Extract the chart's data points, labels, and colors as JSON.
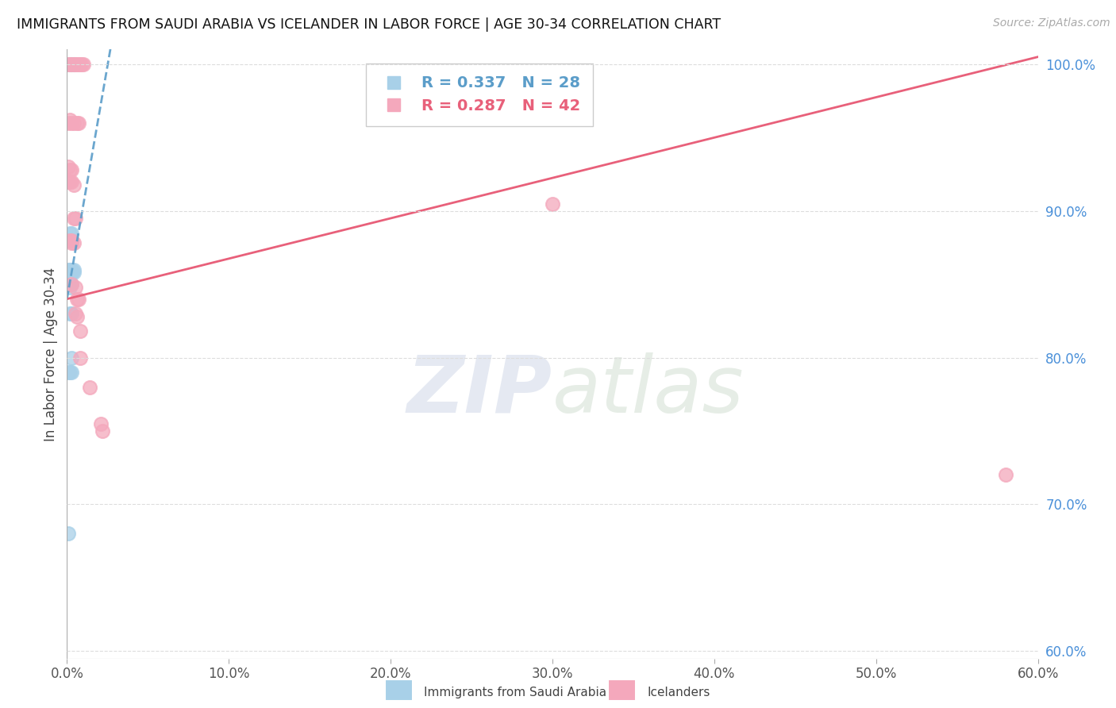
{
  "title": "IMMIGRANTS FROM SAUDI ARABIA VS ICELANDER IN LABOR FORCE | AGE 30-34 CORRELATION CHART",
  "source": "Source: ZipAtlas.com",
  "ylabel": "In Labor Force | Age 30-34",
  "xmin": 0.0,
  "xmax": 0.6,
  "ymin": 0.595,
  "ymax": 1.01,
  "yticks": [
    0.6,
    0.7,
    0.8,
    0.9,
    1.0
  ],
  "ytick_labels": [
    "60.0%",
    "70.0%",
    "80.0%",
    "90.0%",
    "100.0%"
  ],
  "xticks": [
    0.0,
    0.1,
    0.2,
    0.3,
    0.4,
    0.5,
    0.6
  ],
  "xtick_labels": [
    "0.0%",
    "10.0%",
    "20.0%",
    "30.0%",
    "40.0%",
    "50.0%",
    "60.0%"
  ],
  "blue_color": "#A8D0E8",
  "pink_color": "#F4A8BC",
  "blue_line_color": "#5B9DC9",
  "pink_line_color": "#E8607A",
  "legend_blue_label": "Immigrants from Saudi Arabia",
  "legend_pink_label": "Icelanders",
  "R_blue": 0.337,
  "N_blue": 28,
  "R_pink": 0.287,
  "N_pink": 42,
  "blue_x": [
    0.002,
    0.003,
    0.004,
    0.001,
    0.002,
    0.002,
    0.003,
    0.003,
    0.001,
    0.002,
    0.003,
    0.003,
    0.003,
    0.003,
    0.003,
    0.004,
    0.004,
    0.001,
    0.002,
    0.002,
    0.003,
    0.002,
    0.003,
    0.003,
    0.001,
    0.002,
    0.003,
    0.001
  ],
  "blue_y": [
    1.0,
    1.0,
    1.0,
    0.88,
    0.88,
    0.885,
    0.885,
    0.88,
    0.86,
    0.86,
    0.858,
    0.858,
    0.86,
    0.858,
    0.858,
    0.86,
    0.858,
    0.85,
    0.85,
    0.848,
    0.85,
    0.83,
    0.83,
    0.8,
    0.79,
    0.79,
    0.79,
    0.68
  ],
  "pink_x": [
    0.001,
    0.002,
    0.003,
    0.004,
    0.005,
    0.006,
    0.007,
    0.008,
    0.009,
    0.01,
    0.001,
    0.002,
    0.003,
    0.004,
    0.006,
    0.007,
    0.001,
    0.002,
    0.003,
    0.001,
    0.002,
    0.003,
    0.004,
    0.004,
    0.005,
    0.002,
    0.003,
    0.003,
    0.004,
    0.003,
    0.005,
    0.006,
    0.007,
    0.005,
    0.006,
    0.008,
    0.008,
    0.014,
    0.021,
    0.022,
    0.3,
    0.58
  ],
  "pink_y": [
    1.0,
    1.0,
    1.0,
    1.0,
    1.0,
    1.0,
    1.0,
    1.0,
    1.0,
    1.0,
    0.96,
    0.962,
    0.96,
    0.96,
    0.96,
    0.96,
    0.93,
    0.928,
    0.928,
    0.92,
    0.92,
    0.92,
    0.918,
    0.895,
    0.895,
    0.88,
    0.88,
    0.878,
    0.878,
    0.85,
    0.848,
    0.84,
    0.84,
    0.83,
    0.828,
    0.818,
    0.8,
    0.78,
    0.755,
    0.75,
    0.905,
    0.72
  ],
  "watermark_zip": "ZIP",
  "watermark_atlas": "atlas",
  "background_color": "#FFFFFF",
  "grid_color": "#DDDDDD",
  "blue_trend_x0": 0.0,
  "blue_trend_y0": 0.84,
  "blue_trend_x1": 0.026,
  "blue_trend_y1": 1.005,
  "pink_trend_x0": 0.0,
  "pink_trend_y0": 0.84,
  "pink_trend_x1": 0.6,
  "pink_trend_y1": 1.005
}
